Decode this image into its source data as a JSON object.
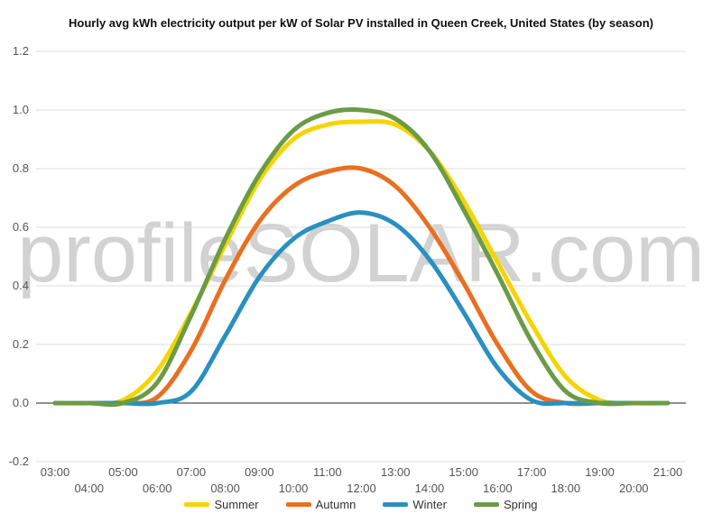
{
  "chart_data": {
    "type": "line",
    "title": "Hourly avg kWh electricity output per kW of Solar PV installed in Queen Creek, United States (by season)",
    "xlabel": "",
    "ylabel": "",
    "x": [
      "03:00",
      "04:00",
      "05:00",
      "06:00",
      "07:00",
      "08:00",
      "09:00",
      "10:00",
      "11:00",
      "12:00",
      "13:00",
      "14:00",
      "15:00",
      "16:00",
      "17:00",
      "18:00",
      "19:00",
      "20:00",
      "21:00"
    ],
    "ylim": [
      -0.2,
      1.2
    ],
    "yticks": [
      "1.2",
      "1.0",
      "0.8",
      "0.6",
      "0.4",
      "0.2",
      "0.0",
      "-0.2"
    ],
    "grid": true,
    "legend_position": "bottom",
    "watermark": "profileSOLAR.com",
    "series": [
      {
        "name": "Summer",
        "color": "#f5d400",
        "values": [
          0,
          0,
          0.01,
          0.11,
          0.31,
          0.54,
          0.76,
          0.9,
          0.95,
          0.96,
          0.95,
          0.86,
          0.69,
          0.48,
          0.27,
          0.09,
          0.01,
          0,
          0
        ]
      },
      {
        "name": "Autumn",
        "color": "#e87020",
        "values": [
          0,
          0,
          0,
          0.02,
          0.18,
          0.42,
          0.62,
          0.74,
          0.79,
          0.8,
          0.74,
          0.6,
          0.41,
          0.2,
          0.04,
          0,
          0,
          0,
          0
        ]
      },
      {
        "name": "Winter",
        "color": "#2990c0",
        "values": [
          0,
          0,
          0,
          0,
          0.04,
          0.23,
          0.43,
          0.56,
          0.62,
          0.65,
          0.61,
          0.49,
          0.31,
          0.12,
          0.01,
          0,
          0,
          0,
          0
        ]
      },
      {
        "name": "Spring",
        "color": "#6b9b47",
        "values": [
          0,
          0,
          0,
          0.07,
          0.3,
          0.56,
          0.78,
          0.93,
          0.99,
          1.0,
          0.97,
          0.86,
          0.66,
          0.44,
          0.21,
          0.04,
          0,
          0,
          0
        ]
      }
    ]
  }
}
